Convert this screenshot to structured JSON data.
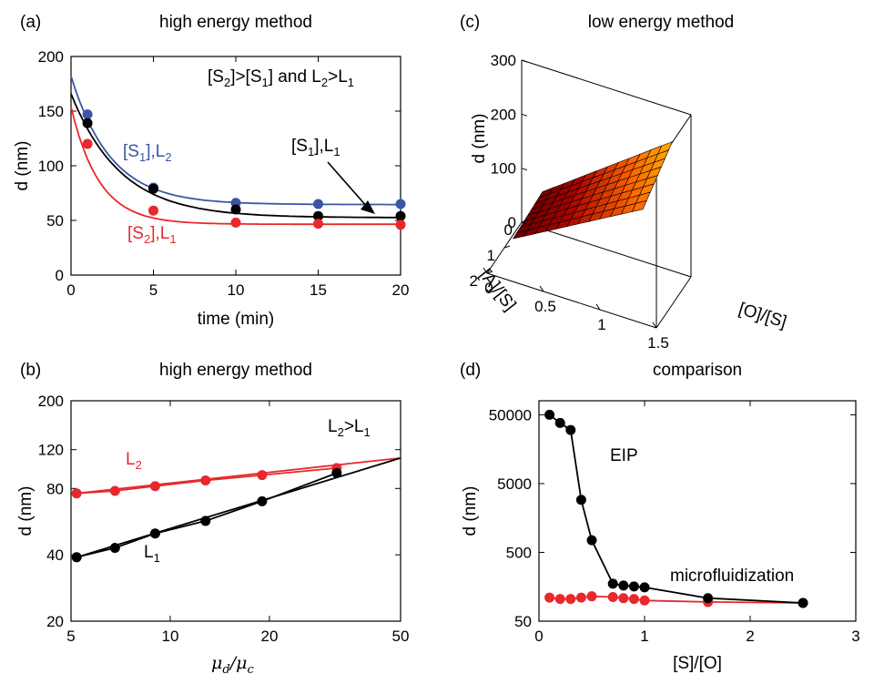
{
  "chart_data": [
    {
      "id": "a",
      "type": "line",
      "panel_label": "(a)",
      "title": "high energy method",
      "xlabel": "time (min)",
      "ylabel": "d (nm)",
      "xlim": [
        0,
        20
      ],
      "ylim": [
        0,
        200
      ],
      "xticks": [
        0,
        5,
        10,
        15,
        20
      ],
      "yticks": [
        0,
        50,
        100,
        150,
        200
      ],
      "condition": {
        "main": "[S",
        "s1": "2",
        "mid1": "]>[S",
        "s2": "1",
        "mid2": "] and L",
        "s3": "2",
        "mid3": ">L",
        "s4": "1"
      },
      "series": [
        {
          "name": "[S1],L2",
          "label_parts": [
            "[S",
            "1",
            "],L",
            "2"
          ],
          "color": "#3b55a8",
          "points": {
            "x": [
              1,
              5,
              10,
              15,
              20
            ],
            "y": [
              147,
              80,
              66,
              65,
              65
            ]
          },
          "fit": {
            "y0": 182,
            "yinf": 64.5,
            "tau": 2.4
          }
        },
        {
          "name": "[S1],L1",
          "label_parts": [
            "[S",
            "1",
            "],L",
            "1"
          ],
          "color": "#000000",
          "points": {
            "x": [
              1,
              5,
              10,
              15,
              20
            ],
            "y": [
              139,
              79,
              60,
              54,
              54
            ]
          },
          "fit": {
            "y0": 166,
            "yinf": 52.5,
            "tau": 3.0
          }
        },
        {
          "name": "[S2],L1",
          "label_parts": [
            "[S",
            "2",
            "],L",
            "1"
          ],
          "color": "#e8282c",
          "points": {
            "x": [
              1,
              5,
              10,
              15,
              20
            ],
            "y": [
              120,
              59,
              48,
              47,
              46
            ]
          },
          "fit": {
            "y0": 154,
            "yinf": 46.5,
            "tau": 1.7
          }
        }
      ]
    },
    {
      "id": "b",
      "type": "line",
      "panel_label": "(b)",
      "title": "high energy method",
      "xlabel": "μd/μc",
      "xlabel_parts": [
        "μ",
        "d",
        "/μ",
        "c"
      ],
      "ylabel": "d (nm)",
      "xscale": "log",
      "yscale": "log",
      "xlim": [
        5,
        50
      ],
      "ylim": [
        20,
        200
      ],
      "xticks": [
        5,
        10,
        20,
        50
      ],
      "yticks": [
        20,
        40,
        80,
        120,
        200
      ],
      "condition": {
        "main": "L",
        "s1": "2",
        "mid1": ">L",
        "s2": "1"
      },
      "series": [
        {
          "name": "L2",
          "label_parts": [
            "L",
            "2"
          ],
          "color": "#e8282c",
          "points": {
            "x": [
              5.2,
              6.8,
              9.0,
              12.8,
              19.0,
              32.0
            ],
            "y": [
              76,
              78,
              82,
              87,
              92,
              99
            ]
          }
        },
        {
          "name": "L1",
          "label_parts": [
            "L",
            "1"
          ],
          "color": "#000000",
          "points": {
            "x": [
              5.2,
              6.8,
              9.0,
              12.8,
              19.0,
              32.0
            ],
            "y": [
              39,
              43,
              50,
              57,
              70,
              94
            ]
          }
        }
      ],
      "fit_lines": [
        {
          "color": "#e8282c",
          "x": [
            5.2,
            50
          ],
          "y": [
            76,
            110
          ]
        },
        {
          "color": "#000000",
          "x": [
            5.2,
            50
          ],
          "y": [
            39,
            110
          ]
        }
      ]
    },
    {
      "id": "c",
      "type": "surface",
      "panel_label": "(c)",
      "title": "low energy method",
      "xlabel": "[O]/[S]",
      "ylabel": "[A]/[S]",
      "zlabel": "d (nm)",
      "xlim": [
        0,
        1.5
      ],
      "ylim": [
        0,
        2
      ],
      "zlim": [
        0,
        300
      ],
      "xticks": [
        0,
        0.5,
        1,
        1.5
      ],
      "yticks": [
        0,
        1,
        2
      ],
      "zticks": [
        0,
        100,
        200,
        300
      ]
    },
    {
      "id": "d",
      "type": "line",
      "panel_label": "(d)",
      "title": "comparison",
      "xlabel": "[S]/[O]",
      "ylabel": "d (nm)",
      "yscale": "log",
      "xlim": [
        0,
        3
      ],
      "ylim": [
        50,
        80000
      ],
      "xticks": [
        0,
        1,
        2,
        3
      ],
      "yticks": [
        50,
        500,
        5000,
        50000
      ],
      "series": [
        {
          "name": "EIP",
          "color": "#000000",
          "points": {
            "x": [
              0.1,
              0.2,
              0.3,
              0.4,
              0.5,
              0.7,
              0.8,
              0.9,
              1.0,
              1.6,
              2.5
            ],
            "y": [
              50000,
              38000,
              30000,
              2900,
              750,
              175,
              165,
              160,
              155,
              108,
              92
            ]
          }
        },
        {
          "name": "microfluidization",
          "color": "#e8282c",
          "points": {
            "x": [
              0.1,
              0.2,
              0.3,
              0.4,
              0.5,
              0.7,
              0.8,
              0.9,
              1.0,
              1.6,
              2.5
            ],
            "y": [
              110,
              105,
              105,
              110,
              115,
              112,
              108,
              105,
              100,
              95,
              92
            ]
          }
        }
      ]
    }
  ]
}
